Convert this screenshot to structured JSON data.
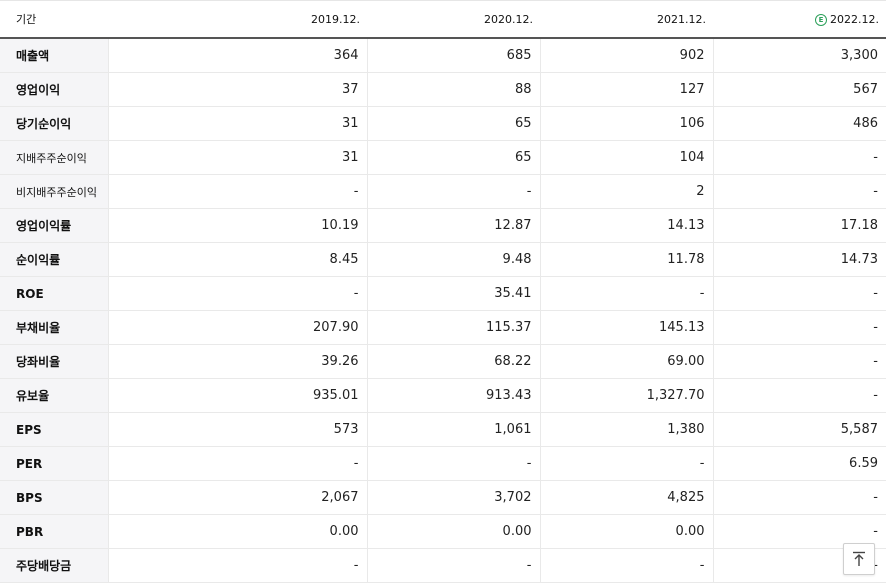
{
  "header": {
    "label": "기간",
    "periods": [
      "2019.12.",
      "2020.12.",
      "2021.12.",
      "2022.12."
    ],
    "estimate_badge": "E",
    "estimate_color": "#2ca05a"
  },
  "rows": [
    {
      "label": "매출액",
      "values": [
        "364",
        "685",
        "902",
        "3,300"
      ]
    },
    {
      "label": "영업이익",
      "values": [
        "37",
        "88",
        "127",
        "567"
      ]
    },
    {
      "label": "당기순이익",
      "values": [
        "31",
        "65",
        "106",
        "486"
      ]
    },
    {
      "label": "지배주주순이익",
      "values": [
        "31",
        "65",
        "104",
        "-"
      ]
    },
    {
      "label": "비지배주주순이익",
      "values": [
        "-",
        "-",
        "2",
        "-"
      ]
    },
    {
      "label": "영업이익률",
      "values": [
        "10.19",
        "12.87",
        "14.13",
        "17.18"
      ]
    },
    {
      "label": "순이익률",
      "values": [
        "8.45",
        "9.48",
        "11.78",
        "14.73"
      ]
    },
    {
      "label": "ROE",
      "values": [
        "-",
        "35.41",
        "-",
        "-"
      ]
    },
    {
      "label": "부채비율",
      "values": [
        "207.90",
        "115.37",
        "145.13",
        "-"
      ]
    },
    {
      "label": "당좌비율",
      "values": [
        "39.26",
        "68.22",
        "69.00",
        "-"
      ]
    },
    {
      "label": "유보율",
      "values": [
        "935.01",
        "913.43",
        "1,327.70",
        "-"
      ]
    },
    {
      "label": "EPS",
      "values": [
        "573",
        "1,061",
        "1,380",
        "5,587"
      ]
    },
    {
      "label": "PER",
      "values": [
        "-",
        "-",
        "-",
        "6.59"
      ]
    },
    {
      "label": "BPS",
      "values": [
        "2,067",
        "3,702",
        "4,825",
        "-"
      ]
    },
    {
      "label": "PBR",
      "values": [
        "0.00",
        "0.00",
        "0.00",
        "-"
      ]
    },
    {
      "label": "주당배당금",
      "values": [
        "-",
        "-",
        "-",
        "-"
      ]
    }
  ],
  "scroll_top_icon": "arrow-up-to-top-icon"
}
